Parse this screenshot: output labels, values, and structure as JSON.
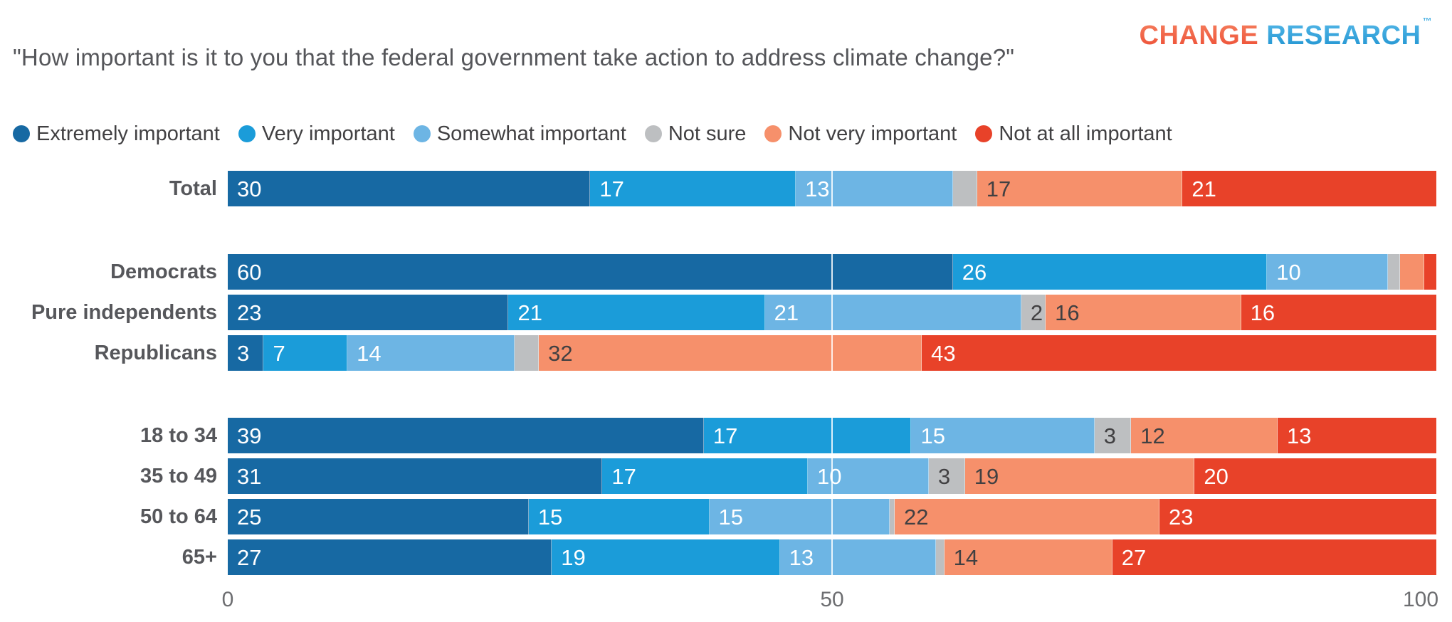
{
  "logo": {
    "change": "CHANGE",
    "research": "RESEARCH",
    "tm": "™"
  },
  "title": "\"How important is it to you that the federal government take action to address climate change?\"",
  "chart_data": {
    "type": "bar",
    "stacked": true,
    "orientation": "horizontal",
    "title": "How important is it to you that the federal government take action to address climate change?",
    "axis": {
      "min": 0,
      "max": 100,
      "ticks": [
        "0",
        "50",
        "100"
      ],
      "tick_values": [
        0,
        50,
        100
      ],
      "gridline_at": 50
    },
    "categories": [
      {
        "name": "Extremely important",
        "color": "#1769a3",
        "value_text_color": "#ffffff"
      },
      {
        "name": "Very important",
        "color": "#1b9cd9",
        "value_text_color": "#ffffff"
      },
      {
        "name": "Somewhat important",
        "color": "#6db5e4",
        "value_text_color": "#ffffff"
      },
      {
        "name": "Not sure",
        "color": "#bdbfc1",
        "value_text_color": "#414042"
      },
      {
        "name": "Not very important",
        "color": "#f6906b",
        "value_text_color": "#414042"
      },
      {
        "name": "Not at all important",
        "color": "#e84229",
        "value_text_color": "#ffffff"
      }
    ],
    "legend_position": "top",
    "groups": [
      {
        "rows": [
          {
            "label": "Total",
            "values": [
              30,
              17,
              13,
              2,
              17,
              21
            ],
            "value_labels": [
              "30",
              "17",
              "13",
              "",
              "17",
              "21"
            ]
          }
        ]
      },
      {
        "rows": [
          {
            "label": "Democrats",
            "values": [
              60,
              26,
              10,
              1,
              2,
              1
            ],
            "value_labels": [
              "60",
              "26",
              "10",
              "",
              "",
              ""
            ]
          },
          {
            "label": "Pure independents",
            "values": [
              23,
              21,
              21,
              2,
              16,
              16
            ],
            "value_labels": [
              "23",
              "21",
              "21",
              "2",
              "16",
              "16"
            ]
          },
          {
            "label": "Republicans",
            "values": [
              3,
              7,
              14,
              2,
              32,
              43
            ],
            "value_labels": [
              "3",
              "7",
              "14",
              "",
              "32",
              "43"
            ]
          }
        ]
      },
      {
        "rows": [
          {
            "label": "18 to 34",
            "values": [
              39,
              17,
              15,
              3,
              12,
              13
            ],
            "value_labels": [
              "39",
              "17",
              "15",
              "3",
              "12",
              "13"
            ]
          },
          {
            "label": "35 to 49",
            "values": [
              31,
              17,
              10,
              3,
              19,
              20
            ],
            "value_labels": [
              "31",
              "17",
              "10",
              "3",
              "19",
              "20"
            ]
          },
          {
            "label": "50 to 64",
            "values": [
              25,
              15,
              15,
              0.4,
              22,
              23
            ],
            "value_labels": [
              "25",
              "15",
              "15",
              "",
              "22",
              "23"
            ]
          },
          {
            "label": "65+",
            "values": [
              27,
              19,
              13,
              0.7,
              14,
              27
            ],
            "value_labels": [
              "27",
              "19",
              "13",
              "",
              "14",
              "27"
            ]
          }
        ]
      }
    ]
  }
}
